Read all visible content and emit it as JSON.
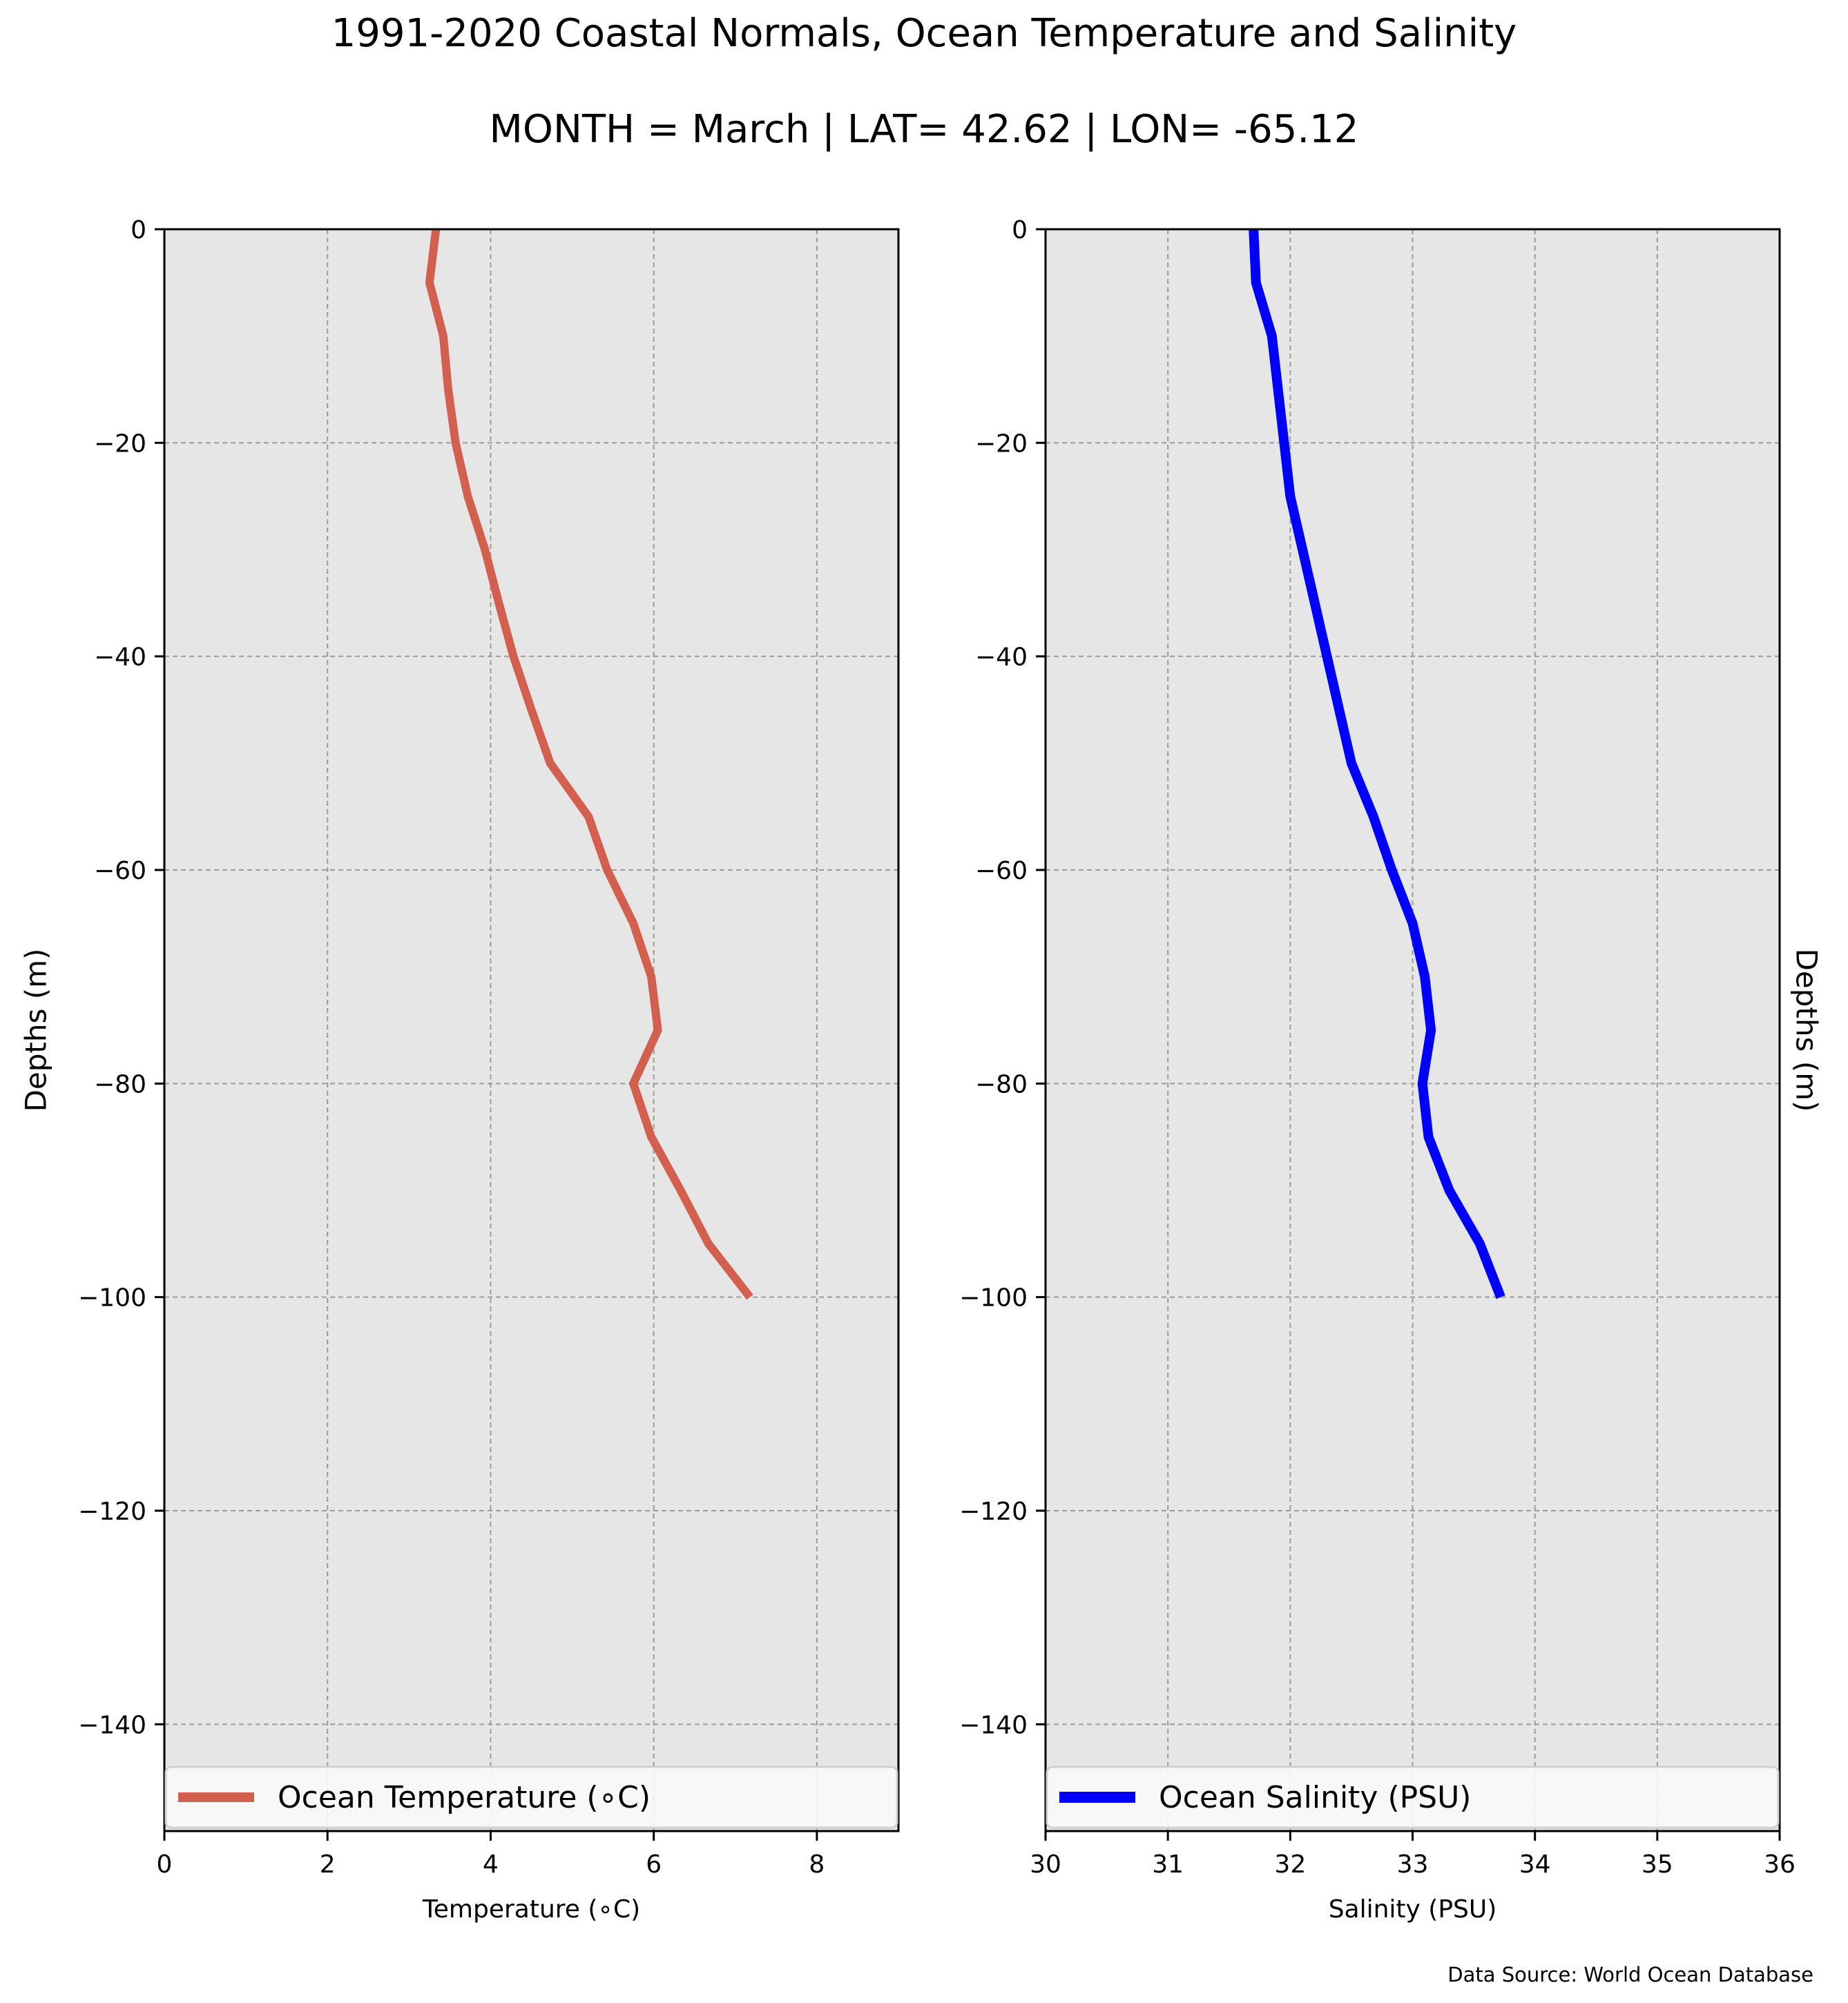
{
  "title": "1991-2020 Coastal Normals, Ocean Temperature and Salinity",
  "subtitle": "MONTH = March | LAT= 42.62 | LON= -65.12",
  "source": "Data Source: World Ocean Database",
  "chart_data": [
    {
      "type": "line",
      "xlabel": "Temperature ($^\\circ$C)",
      "xlabel_display": "Temperature (∘C)",
      "ylabel": "Depths (m)",
      "xlim": [
        0,
        9
      ],
      "ylim": [
        -150,
        0
      ],
      "xticks": [
        0,
        2,
        4,
        6,
        8
      ],
      "yticks": [
        0,
        -20,
        -40,
        -60,
        -80,
        -100,
        -120,
        -140
      ],
      "grid": true,
      "legend_position": "lower center",
      "series": [
        {
          "name": "Ocean Temperature (∘C)",
          "color": "#d35f4e",
          "x": [
            3.33,
            3.25,
            3.42,
            3.48,
            3.57,
            3.72,
            3.93,
            4.1,
            4.28,
            4.5,
            4.73,
            5.2,
            5.43,
            5.75,
            5.97,
            6.05,
            5.75,
            5.97,
            6.33,
            6.67,
            7.18
          ],
          "y": [
            0,
            -5,
            -10,
            -15,
            -20,
            -25,
            -30,
            -35,
            -40,
            -45,
            -50,
            -55,
            -60,
            -65,
            -70,
            -75,
            -80,
            -85,
            -90,
            -95,
            -100
          ]
        }
      ]
    },
    {
      "type": "line",
      "xlabel": "Salinity (PSU)",
      "ylabel": "Depths (m)",
      "xlim": [
        30,
        36
      ],
      "ylim": [
        -150,
        0
      ],
      "xticks": [
        30,
        31,
        32,
        33,
        34,
        35,
        36
      ],
      "yticks": [
        0,
        -20,
        -40,
        -60,
        -80,
        -100,
        -120,
        -140
      ],
      "grid": true,
      "legend_position": "lower center",
      "series": [
        {
          "name": "Ocean Salinity (PSU)",
          "color": "#0000ff",
          "x": [
            31.7,
            31.72,
            31.85,
            31.9,
            31.95,
            32.0,
            32.1,
            32.2,
            32.3,
            32.4,
            32.5,
            32.68,
            32.83,
            33.0,
            33.1,
            33.15,
            33.08,
            33.13,
            33.3,
            33.55,
            33.72
          ],
          "y": [
            0,
            -5,
            -10,
            -15,
            -20,
            -25,
            -30,
            -35,
            -40,
            -45,
            -50,
            -55,
            -60,
            -65,
            -70,
            -75,
            -80,
            -85,
            -90,
            -95,
            -100
          ]
        }
      ]
    }
  ]
}
